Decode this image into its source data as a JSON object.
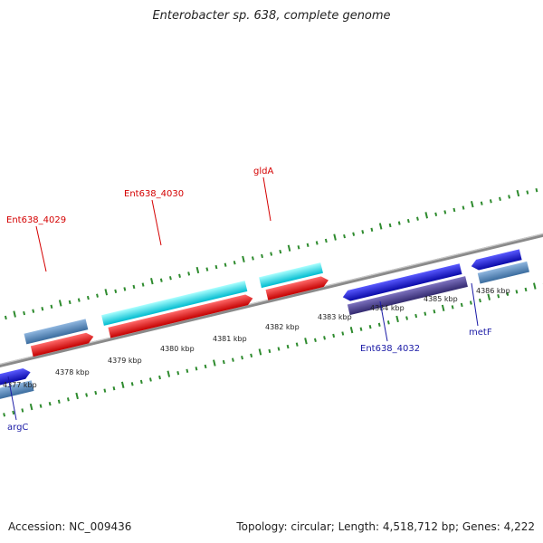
{
  "title": "Enterobacter sp. 638, complete genome",
  "footer": {
    "accession": "Accession: NC_009436",
    "summary": "Topology: circular; Length: 4,518,712 bp; Genes: 4,222"
  },
  "colors": {
    "backbone": "#8a8a8a",
    "ticks": "#2e8b2e",
    "red_gene": "#ff2020",
    "cyan_gene": "#00e5f0",
    "blue_gene": "#1414e6",
    "steel_gene": "#5b8fc2",
    "purple_gene": "#4a3f8f",
    "label_red": "#d40000",
    "label_blue": "#1a1aa6"
  },
  "axis": {
    "unit": "kbp",
    "labels": [
      "4377 kbp",
      "4378 kbp",
      "4379 kbp",
      "4380 kbp",
      "4381 kbp",
      "4382 kbp",
      "4383 kbp",
      "4384 kbp",
      "4385 kbp",
      "4386 kbp"
    ]
  },
  "gene_labels": [
    {
      "name": "Ent638_4029",
      "strand": "forward"
    },
    {
      "name": "Ent638_4030",
      "strand": "forward"
    },
    {
      "name": "gldA",
      "strand": "forward"
    },
    {
      "name": "Ent638_4032",
      "strand": "reverse"
    },
    {
      "name": "metF",
      "strand": "reverse"
    },
    {
      "name": "argC",
      "strand": "reverse"
    }
  ]
}
